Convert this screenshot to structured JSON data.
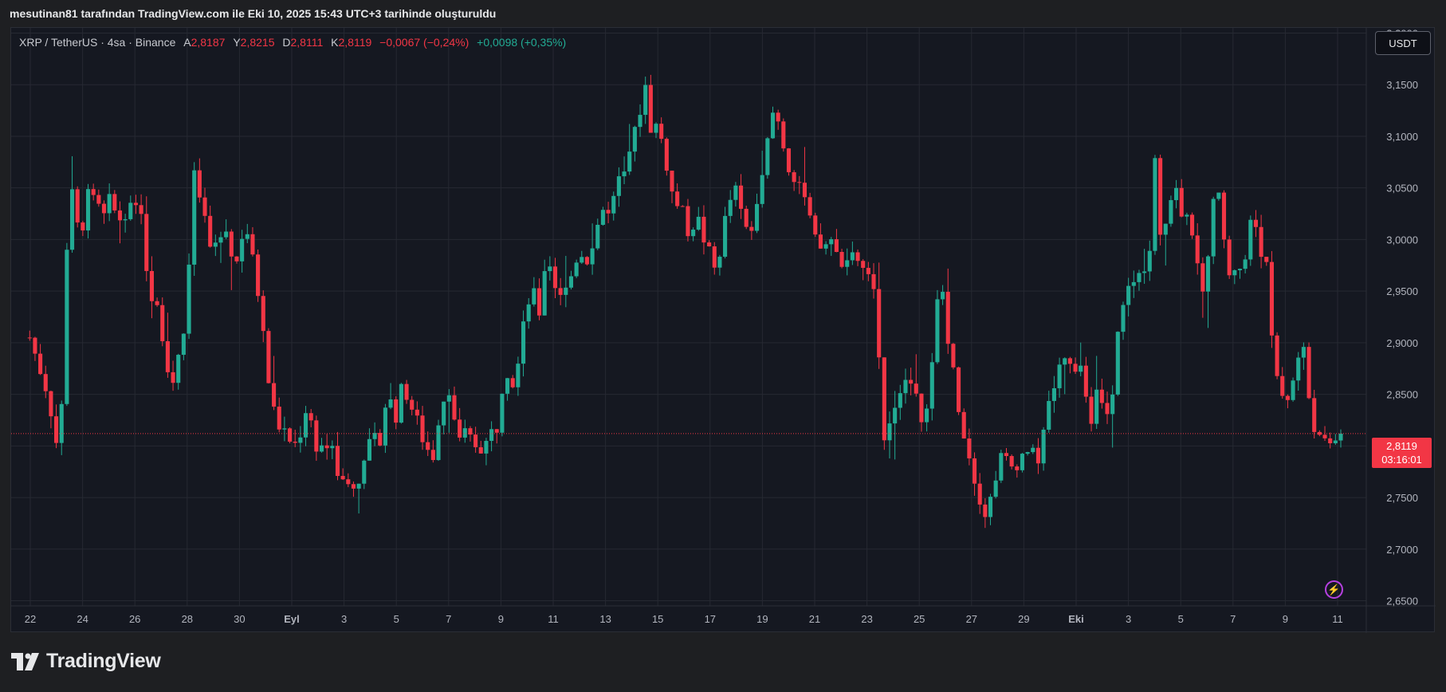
{
  "credit": "mesutinan81 tarafından TradingView.com ile Eki 10, 2025 15:43 UTC+3 tarihinde oluşturuldu",
  "legend": {
    "symbol": "XRP / TetherUS · 4sa · Binance",
    "open_label": "A",
    "open": "2,8187",
    "high_label": "Y",
    "high": "2,8215",
    "low_label": "D",
    "low": "2,8111",
    "close_label": "K",
    "close": "2,8119",
    "change": "−0,0067 (−0,24%)",
    "change2": "+0,0098 (+0,35%)"
  },
  "currency_button": "USDT",
  "last_price": {
    "value": "2,8119",
    "countdown": "03:16:01"
  },
  "footer": {
    "brand": "TradingView",
    "logo_icon": "tradingview-logo-icon"
  },
  "colors": {
    "up": "#22ab94",
    "down": "#f23645",
    "background": "#151821",
    "grid": "#262932"
  },
  "chart_data": {
    "type": "candlestick",
    "ylim": [
      2.645,
      3.205
    ],
    "y_ticks": [
      "3,2000",
      "3,1500",
      "3,1000",
      "3,0500",
      "3,0000",
      "2,9500",
      "2,9000",
      "2,8500",
      "2,8000",
      "2,7500",
      "2,7000",
      "2,6500"
    ],
    "y_tick_values": [
      3.2,
      3.15,
      3.1,
      3.05,
      3.0,
      2.95,
      2.9,
      2.85,
      2.8,
      2.75,
      2.7,
      2.65
    ],
    "x_ticks": [
      "22",
      "24",
      "26",
      "28",
      "30",
      "Eyl",
      "3",
      "5",
      "7",
      "9",
      "11",
      "13",
      "15",
      "17",
      "19",
      "21",
      "23",
      "25",
      "27",
      "29",
      "Eki",
      "3",
      "5",
      "7",
      "9",
      "11"
    ],
    "x_tick_bold": [
      false,
      false,
      false,
      false,
      false,
      true,
      false,
      false,
      false,
      false,
      false,
      false,
      false,
      false,
      false,
      false,
      false,
      false,
      false,
      false,
      true,
      false,
      false,
      false,
      false,
      false
    ],
    "last_price": 2.8119,
    "close_path": [
      [
        0,
        2.905
      ],
      [
        1.5,
        2.85
      ],
      [
        2.2,
        2.8
      ],
      [
        2.6,
        2.84
      ],
      [
        3.2,
        3.07
      ],
      [
        4.2,
        2.99
      ],
      [
        4.6,
        3.06
      ],
      [
        5.8,
        3.03
      ],
      [
        6.8,
        3.04
      ],
      [
        7.4,
        3.01
      ],
      [
        8.2,
        3.03
      ],
      [
        9.2,
        3.02
      ],
      [
        9.6,
        2.95
      ],
      [
        10.4,
        2.94
      ],
      [
        11.4,
        2.85
      ],
      [
        11.8,
        2.88
      ],
      [
        12.6,
        2.92
      ],
      [
        13.3,
        3.06
      ],
      [
        14.0,
        3.03
      ],
      [
        14.6,
        2.99
      ],
      [
        16.0,
        3.01
      ],
      [
        16.6,
        2.97
      ],
      [
        17.4,
        3.02
      ],
      [
        18.6,
        2.94
      ],
      [
        19.2,
        2.87
      ],
      [
        19.8,
        2.83
      ],
      [
        20.6,
        2.81
      ],
      [
        21.6,
        2.8
      ],
      [
        22.4,
        2.84
      ],
      [
        23.2,
        2.8
      ],
      [
        24.2,
        2.8
      ],
      [
        24.6,
        2.79
      ],
      [
        25.2,
        2.76
      ],
      [
        25.8,
        2.77
      ],
      [
        26.4,
        2.75
      ],
      [
        26.8,
        2.79
      ],
      [
        27.6,
        2.8
      ],
      [
        28.4,
        2.81
      ],
      [
        29.0,
        2.86
      ],
      [
        29.4,
        2.82
      ],
      [
        30.2,
        2.86
      ],
      [
        30.8,
        2.84
      ],
      [
        31.4,
        2.82
      ],
      [
        32.0,
        2.8
      ],
      [
        32.6,
        2.79
      ],
      [
        33.2,
        2.84
      ],
      [
        34.0,
        2.86
      ],
      [
        34.6,
        2.8
      ],
      [
        35.2,
        2.81
      ],
      [
        36.2,
        2.8
      ],
      [
        36.8,
        2.8
      ],
      [
        37.2,
        2.81
      ],
      [
        37.8,
        2.82
      ],
      [
        38.4,
        2.88
      ],
      [
        39.2,
        2.86
      ],
      [
        39.8,
        2.92
      ],
      [
        40.6,
        2.95
      ],
      [
        41.2,
        2.93
      ],
      [
        41.8,
        2.99
      ],
      [
        42.6,
        2.95
      ],
      [
        43.4,
        2.95
      ],
      [
        44.4,
        2.99
      ],
      [
        45.2,
        2.98
      ],
      [
        46.2,
        3.03
      ],
      [
        47.0,
        3.02
      ],
      [
        47.4,
        3.05
      ],
      [
        48.0,
        3.06
      ],
      [
        48.6,
        3.08
      ],
      [
        49.2,
        3.12
      ],
      [
        49.8,
        3.15
      ],
      [
        50.2,
        3.11
      ],
      [
        50.8,
        3.11
      ],
      [
        51.4,
        3.08
      ],
      [
        52.0,
        3.04
      ],
      [
        52.6,
        3.03
      ],
      [
        53.2,
        3.01
      ],
      [
        54.0,
        3.02
      ],
      [
        54.8,
        2.99
      ],
      [
        55.4,
        2.97
      ],
      [
        55.8,
        2.99
      ],
      [
        56.4,
        3.03
      ],
      [
        57.0,
        3.05
      ],
      [
        57.8,
        3.01
      ],
      [
        58.4,
        3.01
      ],
      [
        59.0,
        3.06
      ],
      [
        59.6,
        3.09
      ],
      [
        60.2,
        3.13
      ],
      [
        60.8,
        3.1
      ],
      [
        61.4,
        3.07
      ],
      [
        62.0,
        3.05
      ],
      [
        62.6,
        3.04
      ],
      [
        63.4,
        3.0
      ],
      [
        64.0,
        2.99
      ],
      [
        64.8,
        3.0
      ],
      [
        65.4,
        2.98
      ],
      [
        66.4,
        2.98
      ],
      [
        67.0,
        2.98
      ],
      [
        67.4,
        2.97
      ],
      [
        68.2,
        2.95
      ],
      [
        68.6,
        2.9
      ],
      [
        69.0,
        2.81
      ],
      [
        69.6,
        2.83
      ],
      [
        70.4,
        2.86
      ],
      [
        71.2,
        2.86
      ],
      [
        71.8,
        2.84
      ],
      [
        72.4,
        2.82
      ],
      [
        73.0,
        2.88
      ],
      [
        73.6,
        2.97
      ],
      [
        74.2,
        2.91
      ],
      [
        74.8,
        2.86
      ],
      [
        75.4,
        2.82
      ],
      [
        76.0,
        2.79
      ],
      [
        76.6,
        2.76
      ],
      [
        77.4,
        2.73
      ],
      [
        78.0,
        2.77
      ],
      [
        78.6,
        2.79
      ],
      [
        79.4,
        2.78
      ],
      [
        80.2,
        2.79
      ],
      [
        80.8,
        2.8
      ],
      [
        81.4,
        2.78
      ],
      [
        82.2,
        2.83
      ],
      [
        82.8,
        2.86
      ],
      [
        83.4,
        2.88
      ],
      [
        84.0,
        2.89
      ],
      [
        84.6,
        2.87
      ],
      [
        85.2,
        2.87
      ],
      [
        85.8,
        2.82
      ],
      [
        86.4,
        2.86
      ],
      [
        87.0,
        2.82
      ],
      [
        87.6,
        2.85
      ],
      [
        88.2,
        2.94
      ],
      [
        88.8,
        2.95
      ],
      [
        89.4,
        2.96
      ],
      [
        90.0,
        2.97
      ],
      [
        90.6,
        3.0
      ],
      [
        91.0,
        3.09
      ],
      [
        91.4,
        3.01
      ],
      [
        92.0,
        3.02
      ],
      [
        92.6,
        3.06
      ],
      [
        93.2,
        3.02
      ],
      [
        94.0,
        3.01
      ],
      [
        94.6,
        2.95
      ],
      [
        95.2,
        2.97
      ],
      [
        95.8,
        3.06
      ],
      [
        96.4,
        3.02
      ],
      [
        97.0,
        2.96
      ],
      [
        97.6,
        2.98
      ],
      [
        98.2,
        2.97
      ],
      [
        98.8,
        3.03
      ],
      [
        99.4,
        3.0
      ],
      [
        100.0,
        2.97
      ],
      [
        100.6,
        2.88
      ],
      [
        101.2,
        2.85
      ],
      [
        101.8,
        2.85
      ],
      [
        102.4,
        2.87
      ],
      [
        102.8,
        2.91
      ],
      [
        103.4,
        2.85
      ],
      [
        104.0,
        2.81
      ],
      [
        104.6,
        2.8
      ],
      [
        105.2,
        2.8
      ],
      [
        105.6,
        2.81
      ],
      [
        106.0,
        2.8119
      ]
    ],
    "bar_index_range": [
      0,
      106
    ],
    "note_x_range": [
      -1.5,
      108.5
    ]
  }
}
